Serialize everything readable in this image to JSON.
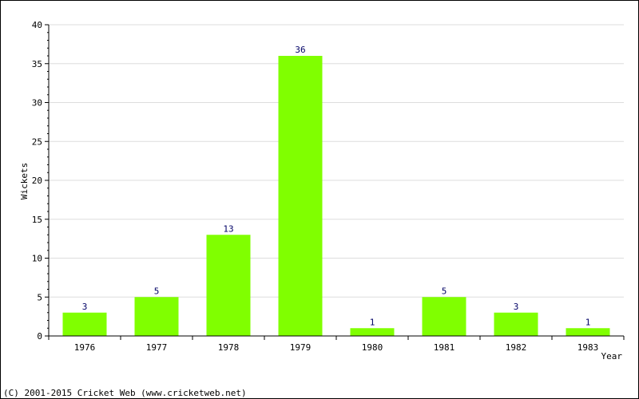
{
  "chart_data": {
    "type": "bar",
    "categories": [
      "1976",
      "1977",
      "1978",
      "1979",
      "1980",
      "1981",
      "1982",
      "1983"
    ],
    "values": [
      3,
      5,
      13,
      36,
      1,
      5,
      3,
      1
    ],
    "xlabel": "Year",
    "ylabel": "Wickets",
    "ylim": [
      0,
      40
    ],
    "yticks": [
      0,
      5,
      10,
      15,
      20,
      25,
      30,
      35,
      40
    ],
    "grid": true,
    "bar_color": "#80ff00",
    "value_label_color": "#000066"
  },
  "footer": {
    "copyright": "(C) 2001-2015 Cricket Web (www.cricketweb.net)"
  }
}
